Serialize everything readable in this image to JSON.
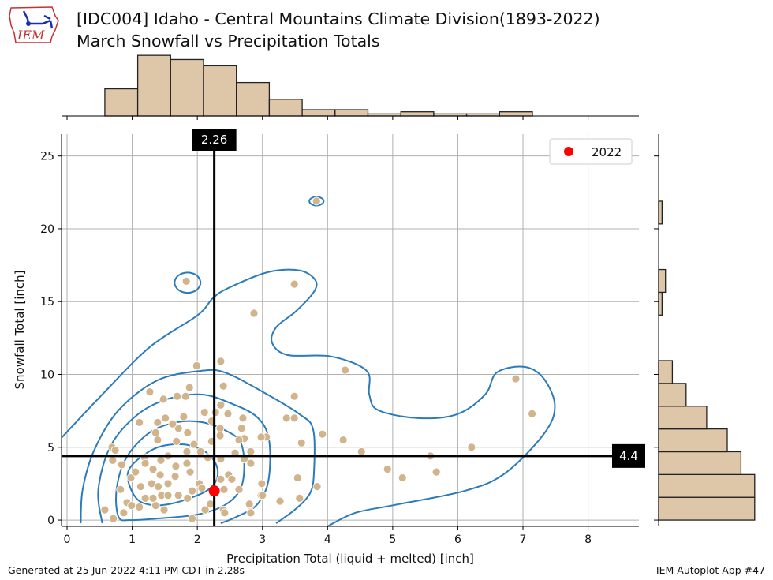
{
  "header": {
    "logo_text": "IEM",
    "title_line1": "[IDC004] Idaho - Central Mountains Climate Division(1893-2022)",
    "title_line2": "March Snowfall vs Precipitation Totals"
  },
  "footer": {
    "left": "Generated at 25 Jun 2022 4:11 PM CDT in 2.28s",
    "right": "IEM Autoplot App #47"
  },
  "colors": {
    "points": "#d2b48c",
    "hist": "#dec6a8",
    "contour": "#2b7bba",
    "highlight": "#ff0000",
    "refline": "#000000"
  },
  "chart_data": {
    "type": "scatter",
    "xlabel": "Precipitation Total (liquid + melted) [inch]",
    "ylabel": "Snowfall Total [inch]",
    "xlim": [
      -0.085,
      8.78
    ],
    "ylim": [
      -0.43,
      26.5
    ],
    "xticks": [
      "0",
      "1",
      "2",
      "3",
      "4",
      "5",
      "6",
      "7",
      "8"
    ],
    "yticks": [
      "0",
      "5",
      "10",
      "15",
      "20",
      "25"
    ],
    "grid": true,
    "legend": {
      "label": "2022",
      "placement": "top-right"
    },
    "highlight": {
      "label": "2022",
      "x": 2.26,
      "y": 2.0
    },
    "ref_x": {
      "value": 2.26,
      "label": "2.26"
    },
    "ref_y": {
      "value": 4.4,
      "label": "4.4"
    },
    "points": [
      [
        1.83,
        16.4
      ],
      [
        3.49,
        16.2
      ],
      [
        2.87,
        14.2
      ],
      [
        3.83,
        21.9
      ],
      [
        1.99,
        10.6
      ],
      [
        2.36,
        10.9
      ],
      [
        4.27,
        10.3
      ],
      [
        6.89,
        9.7
      ],
      [
        7.14,
        7.3
      ],
      [
        1.27,
        8.8
      ],
      [
        2.4,
        9.2
      ],
      [
        3.49,
        8.5
      ],
      [
        3.92,
        5.9
      ],
      [
        4.24,
        5.5
      ],
      [
        4.52,
        4.7
      ],
      [
        6.21,
        5.0
      ],
      [
        5.58,
        4.4
      ],
      [
        5.67,
        3.3
      ],
      [
        4.92,
        3.5
      ],
      [
        5.15,
        2.9
      ],
      [
        3.54,
        2.9
      ],
      [
        3.84,
        2.3
      ],
      [
        3.57,
        1.5
      ],
      [
        3.27,
        1.3
      ],
      [
        3.37,
        7.0
      ],
      [
        3.49,
        7.0
      ],
      [
        3.6,
        5.3
      ],
      [
        3.06,
        5.7
      ],
      [
        2.98,
        5.7
      ],
      [
        2.99,
        2.5
      ],
      [
        2.98,
        1.7
      ],
      [
        2.81,
        1.0
      ],
      [
        2.82,
        0.5
      ],
      [
        1.88,
        9.1
      ],
      [
        1.48,
        8.3
      ],
      [
        1.69,
        8.5
      ],
      [
        1.82,
        8.5
      ],
      [
        2.36,
        7.9
      ],
      [
        2.11,
        7.4
      ],
      [
        2.28,
        7.4
      ],
      [
        2.47,
        7.3
      ],
      [
        2.7,
        7.0
      ],
      [
        1.51,
        7.0
      ],
      [
        1.79,
        7.1
      ],
      [
        1.11,
        6.7
      ],
      [
        1.39,
        6.7
      ],
      [
        2.22,
        6.8
      ],
      [
        1.71,
        6.3
      ],
      [
        1.85,
        6.0
      ],
      [
        1.36,
        6.0
      ],
      [
        2.35,
        6.3
      ],
      [
        2.35,
        5.8
      ],
      [
        2.68,
        6.3
      ],
      [
        2.72,
        5.6
      ],
      [
        2.64,
        5.5
      ],
      [
        1.39,
        5.5
      ],
      [
        1.68,
        5.4
      ],
      [
        2.22,
        5.4
      ],
      [
        1.95,
        5.2
      ],
      [
        0.69,
        5.0
      ],
      [
        0.74,
        4.8
      ],
      [
        1.84,
        4.7
      ],
      [
        2.05,
        4.7
      ],
      [
        2.16,
        4.3
      ],
      [
        2.36,
        4.2
      ],
      [
        2.82,
        4.7
      ],
      [
        2.82,
        3.9
      ],
      [
        2.72,
        4.2
      ],
      [
        0.7,
        4.1
      ],
      [
        0.84,
        3.8
      ],
      [
        1.19,
        4.3
      ],
      [
        1.44,
        4.1
      ],
      [
        1.32,
        3.5
      ],
      [
        1.67,
        3.7
      ],
      [
        1.84,
        3.9
      ],
      [
        1.89,
        3.3
      ],
      [
        1.43,
        3.1
      ],
      [
        1.66,
        3.0
      ],
      [
        0.98,
        2.9
      ],
      [
        2.48,
        3.1
      ],
      [
        2.53,
        2.8
      ],
      [
        2.36,
        2.8
      ],
      [
        1.13,
        2.3
      ],
      [
        1.3,
        2.5
      ],
      [
        1.4,
        2.3
      ],
      [
        1.55,
        2.5
      ],
      [
        2.03,
        2.5
      ],
      [
        2.07,
        2.2
      ],
      [
        0.82,
        2.1
      ],
      [
        2.41,
        2.1
      ],
      [
        2.64,
        2.1
      ],
      [
        1.32,
        1.5
      ],
      [
        1.45,
        1.7
      ],
      [
        1.55,
        1.7
      ],
      [
        1.71,
        1.7
      ],
      [
        1.85,
        1.5
      ],
      [
        1.92,
        2.0
      ],
      [
        1.2,
        1.5
      ],
      [
        0.92,
        1.2
      ],
      [
        0.99,
        1.0
      ],
      [
        1.36,
        1.0
      ],
      [
        1.11,
        0.9
      ],
      [
        1.49,
        0.7
      ],
      [
        2.12,
        0.7
      ],
      [
        2.2,
        1.1
      ],
      [
        2.4,
        0.7
      ],
      [
        2.42,
        0.5
      ],
      [
        2.8,
        1.1
      ],
      [
        2.82,
        0.5
      ],
      [
        3.0,
        1.7
      ],
      [
        0.58,
        0.7
      ],
      [
        0.71,
        0.1
      ],
      [
        0.87,
        0.5
      ],
      [
        1.92,
        0.1
      ],
      [
        1.2,
        3.9
      ],
      [
        1.55,
        4.4
      ],
      [
        1.05,
        3.3
      ],
      [
        2.58,
        4.6
      ],
      [
        1.62,
        6.6
      ]
    ],
    "contours": [
      {
        "closed": false,
        "points": [
          [
            -0.12,
            5.48
          ],
          [
            0.54,
            8.62
          ],
          [
            1.27,
            11.88
          ],
          [
            2.0,
            14.05
          ],
          [
            2.24,
            15.24
          ],
          [
            2.48,
            15.94
          ],
          [
            3.09,
            17.03
          ],
          [
            3.57,
            17.14
          ],
          [
            3.81,
            16.49
          ],
          [
            3.79,
            15.67
          ],
          [
            3.51,
            14.32
          ],
          [
            3.21,
            13.23
          ],
          [
            3.15,
            12.15
          ],
          [
            3.39,
            11.33
          ],
          [
            4.06,
            11.23
          ],
          [
            4.6,
            10.25
          ],
          [
            4.64,
            8.62
          ],
          [
            4.78,
            7.54
          ],
          [
            5.39,
            7.0
          ],
          [
            5.99,
            7.27
          ],
          [
            6.42,
            8.62
          ],
          [
            6.6,
            10.14
          ],
          [
            7.02,
            10.52
          ],
          [
            7.32,
            9.71
          ],
          [
            7.49,
            7.81
          ],
          [
            7.32,
            5.91
          ],
          [
            6.72,
            3.2
          ],
          [
            6.11,
            2.01
          ],
          [
            5.02,
            1.03
          ],
          [
            4.42,
            0.49
          ],
          [
            4.0,
            -0.43
          ]
        ]
      },
      {
        "closed": false,
        "points": [
          [
            0.21,
            -0.22
          ],
          [
            0.24,
            2.11
          ],
          [
            0.42,
            4.83
          ],
          [
            0.79,
            7.54
          ],
          [
            1.39,
            9.6
          ],
          [
            2.06,
            10.25
          ],
          [
            2.42,
            10.14
          ],
          [
            2.97,
            8.89
          ],
          [
            3.57,
            7.27
          ],
          [
            3.78,
            6.18
          ],
          [
            3.79,
            3.2
          ],
          [
            3.73,
            1.84
          ],
          [
            3.51,
            0.76
          ],
          [
            3.21,
            -0.22
          ]
        ]
      },
      {
        "closed": false,
        "points": [
          [
            0.54,
            -0.22
          ],
          [
            0.48,
            2.11
          ],
          [
            0.67,
            5.1
          ],
          [
            1.09,
            7.27
          ],
          [
            1.57,
            8.35
          ],
          [
            2.07,
            8.62
          ],
          [
            2.48,
            8.08
          ],
          [
            2.91,
            7.1
          ],
          [
            3.1,
            5.53
          ],
          [
            3.09,
            2.66
          ],
          [
            2.91,
            1.03
          ],
          [
            2.6,
            0.22
          ],
          [
            2.36,
            -0.22
          ]
        ]
      },
      {
        "closed": true,
        "points": [
          [
            0.79,
            0.22
          ],
          [
            0.76,
            2.11
          ],
          [
            0.91,
            4.28
          ],
          [
            1.27,
            6.02
          ],
          [
            1.69,
            6.72
          ],
          [
            2.07,
            6.72
          ],
          [
            2.42,
            6.18
          ],
          [
            2.66,
            5.37
          ],
          [
            2.72,
            3.74
          ],
          [
            2.66,
            2.11
          ],
          [
            2.42,
            1.03
          ],
          [
            2.0,
            0.38
          ],
          [
            1.39,
            0.11
          ],
          [
            0.97,
            0.0
          ]
        ]
      },
      {
        "closed": true,
        "points": [
          [
            1.05,
            1.57
          ],
          [
            0.94,
            3.36
          ],
          [
            1.31,
            4.83
          ],
          [
            1.72,
            5.21
          ],
          [
            2.07,
            4.83
          ],
          [
            2.28,
            3.9
          ],
          [
            2.3,
            2.82
          ],
          [
            2.12,
            1.95
          ],
          [
            1.66,
            1.19
          ],
          [
            1.31,
            1.03
          ]
        ]
      },
      {
        "closed": true,
        "points": [
          [
            2.05,
            16.3
          ],
          [
            1.99,
            16.8
          ],
          [
            1.85,
            17.0
          ],
          [
            1.71,
            16.8
          ],
          [
            1.65,
            16.3
          ],
          [
            1.71,
            15.8
          ],
          [
            1.85,
            15.6
          ],
          [
            1.99,
            15.8
          ]
        ]
      },
      {
        "closed": true,
        "points": [
          [
            3.94,
            21.9
          ],
          [
            3.91,
            22.1
          ],
          [
            3.83,
            22.2
          ],
          [
            3.75,
            22.1
          ],
          [
            3.72,
            21.9
          ],
          [
            3.75,
            21.7
          ],
          [
            3.83,
            21.6
          ],
          [
            3.91,
            21.7
          ]
        ]
      }
    ],
    "hist_x": {
      "start": 0.58,
      "bin_width": 0.505,
      "counts": [
        13,
        29,
        27,
        24,
        16,
        8,
        3,
        3,
        1,
        2,
        1,
        1,
        2
      ]
    },
    "hist_y": {
      "start": 0.0,
      "bin_width": 1.564,
      "counts": [
        28,
        28,
        24,
        20,
        14,
        8,
        4,
        0,
        0,
        1,
        2,
        0,
        0,
        1
      ]
    }
  }
}
